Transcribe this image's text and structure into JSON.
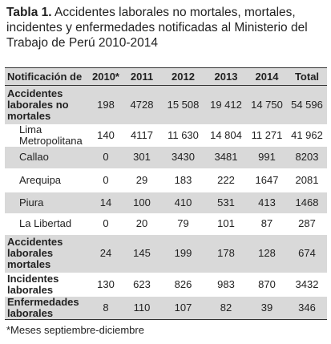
{
  "title": {
    "label": "Tabla 1.",
    "text": "Accidentes laborales no mortales, mortales, incidentes y enfermedades notificadas al Ministerio del Trabajo de Perú 2010-2014"
  },
  "table": {
    "header": [
      "Notificación de",
      "2010*",
      "2011",
      "2012",
      "2013",
      "2014",
      "Total"
    ],
    "rows": [
      [
        "Accidentes laborales no mortales",
        "198",
        "4728",
        "15 508",
        "19 412",
        "14 750",
        "54 596"
      ],
      [
        "Lima Metropolitana",
        "140",
        "4117",
        "11 630",
        "14 804",
        "11 271",
        "41 962"
      ],
      [
        "Callao",
        "0",
        "301",
        "3430",
        "3481",
        "991",
        "8203"
      ],
      [
        "Arequipa",
        "0",
        "29",
        "183",
        "222",
        "1647",
        "2081"
      ],
      [
        "Piura",
        "14",
        "100",
        "410",
        "531",
        "413",
        "1468"
      ],
      [
        "La Libertad",
        "0",
        "20",
        "79",
        "101",
        "87",
        "287"
      ],
      [
        "Accidentes laborales mortales",
        "24",
        "145",
        "199",
        "178",
        "128",
        "674"
      ],
      [
        "Incidentes laborales",
        "130",
        "623",
        "826",
        "983",
        "870",
        "3432"
      ],
      [
        "Enfermedades laborales",
        "8",
        "110",
        "107",
        "82",
        "39",
        "346"
      ]
    ]
  },
  "footnote": "*Meses septiembre-diciembre"
}
